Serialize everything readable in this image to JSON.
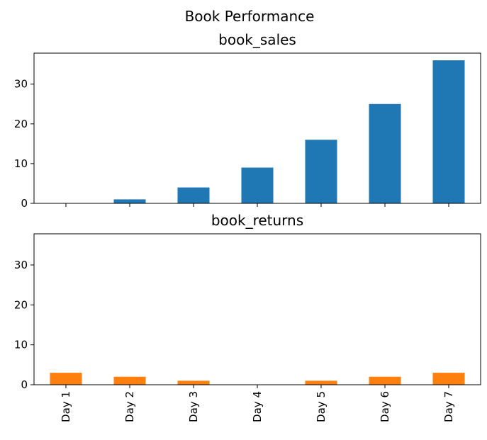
{
  "chart_data": {
    "title": "Book Performance",
    "type": "bar",
    "categories": [
      "Day 1",
      "Day 2",
      "Day 3",
      "Day 4",
      "Day 5",
      "Day 6",
      "Day 7"
    ],
    "sharey": true,
    "ylim": [
      0,
      37.8
    ],
    "yticks": [
      0,
      10,
      20,
      30
    ],
    "subplots": [
      {
        "title": "book_sales",
        "color": "#1f77b4",
        "values": [
          0,
          1,
          4,
          9,
          16,
          25,
          36
        ],
        "show_xticklabels": false
      },
      {
        "title": "book_returns",
        "color": "#ff7f0e",
        "values": [
          3,
          2,
          1,
          0,
          1,
          2,
          3
        ],
        "show_xticklabels": true
      }
    ]
  }
}
